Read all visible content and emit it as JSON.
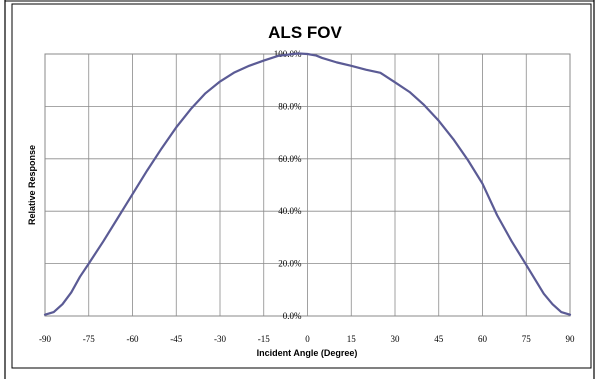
{
  "chart_data": {
    "type": "line",
    "title": "ALS FOV",
    "xlabel": "Incident Angle (Degree)",
    "ylabel": "Relative Response",
    "xlim": [
      -90,
      90
    ],
    "ylim": [
      0,
      100
    ],
    "grid": true,
    "legend": "none",
    "x_ticks": [
      "-90",
      "-75",
      "-60",
      "-45",
      "-30",
      "-15",
      "0",
      "15",
      "30",
      "45",
      "60",
      "75",
      "90"
    ],
    "y_ticks": [
      "0.0%",
      "20.0%",
      "40.0%",
      "60.0%",
      "80.0%",
      "100.0%"
    ],
    "series": [
      {
        "color": "#5B5B95",
        "x": [
          -90,
          -87,
          -84,
          -81,
          -78,
          -75,
          -70,
          -65,
          -60,
          -55,
          -50,
          -45,
          -40,
          -35,
          -30,
          -25,
          -20,
          -15,
          -10,
          -5,
          -3,
          0,
          3,
          5,
          10,
          15,
          20,
          25,
          30,
          35,
          40,
          45,
          50,
          55,
          60,
          65,
          70,
          75,
          78,
          81,
          84,
          87,
          90
        ],
        "y": [
          0.5,
          1.5,
          4.5,
          9,
          15,
          20,
          28.5,
          37.5,
          46.5,
          55.5,
          64,
          72,
          79,
          85,
          89.5,
          93,
          95.5,
          97.5,
          99.3,
          100,
          100.2,
          100,
          99.4,
          98.5,
          96.8,
          95.5,
          94,
          92.8,
          89.2,
          85.5,
          80.5,
          74.5,
          67.5,
          59.5,
          50.5,
          38.5,
          28.5,
          19.5,
          14,
          8.5,
          4.5,
          1.5,
          0.5
        ]
      }
    ]
  }
}
